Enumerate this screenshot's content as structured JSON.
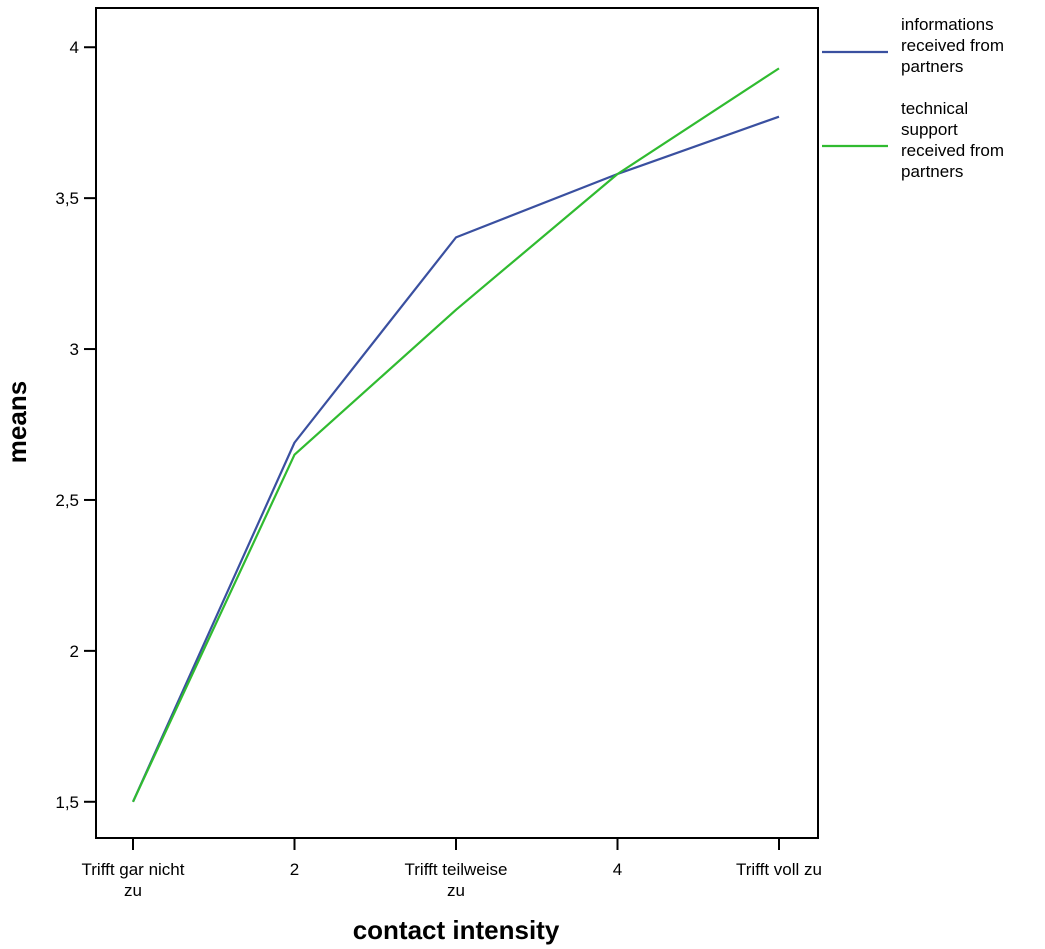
{
  "chart_data": {
    "type": "line",
    "categories": [
      [
        "Trifft gar nicht",
        "zu"
      ],
      [
        "2"
      ],
      [
        "Trifft teilweise",
        "zu"
      ],
      [
        "4"
      ],
      [
        "Trifft voll zu"
      ]
    ],
    "series": [
      {
        "name": [
          "informations",
          "received from",
          "partners"
        ],
        "color": "#3a50a0",
        "values": [
          1.5,
          2.69,
          3.37,
          3.58,
          3.77
        ]
      },
      {
        "name": [
          "technical",
          "support",
          "received from",
          "partners"
        ],
        "color": "#30bb30",
        "values": [
          1.5,
          2.65,
          3.13,
          3.58,
          3.93
        ]
      }
    ],
    "y_ticks": [
      1.5,
      2,
      2.5,
      3,
      3.5,
      4
    ],
    "y_tick_labels": [
      "1,5",
      "2",
      "2,5",
      "3",
      "3,5",
      "4"
    ],
    "ylim": [
      1.38,
      4.13
    ],
    "xlabel": "contact intensity",
    "ylabel": "means",
    "grid": false,
    "legend": "right"
  }
}
